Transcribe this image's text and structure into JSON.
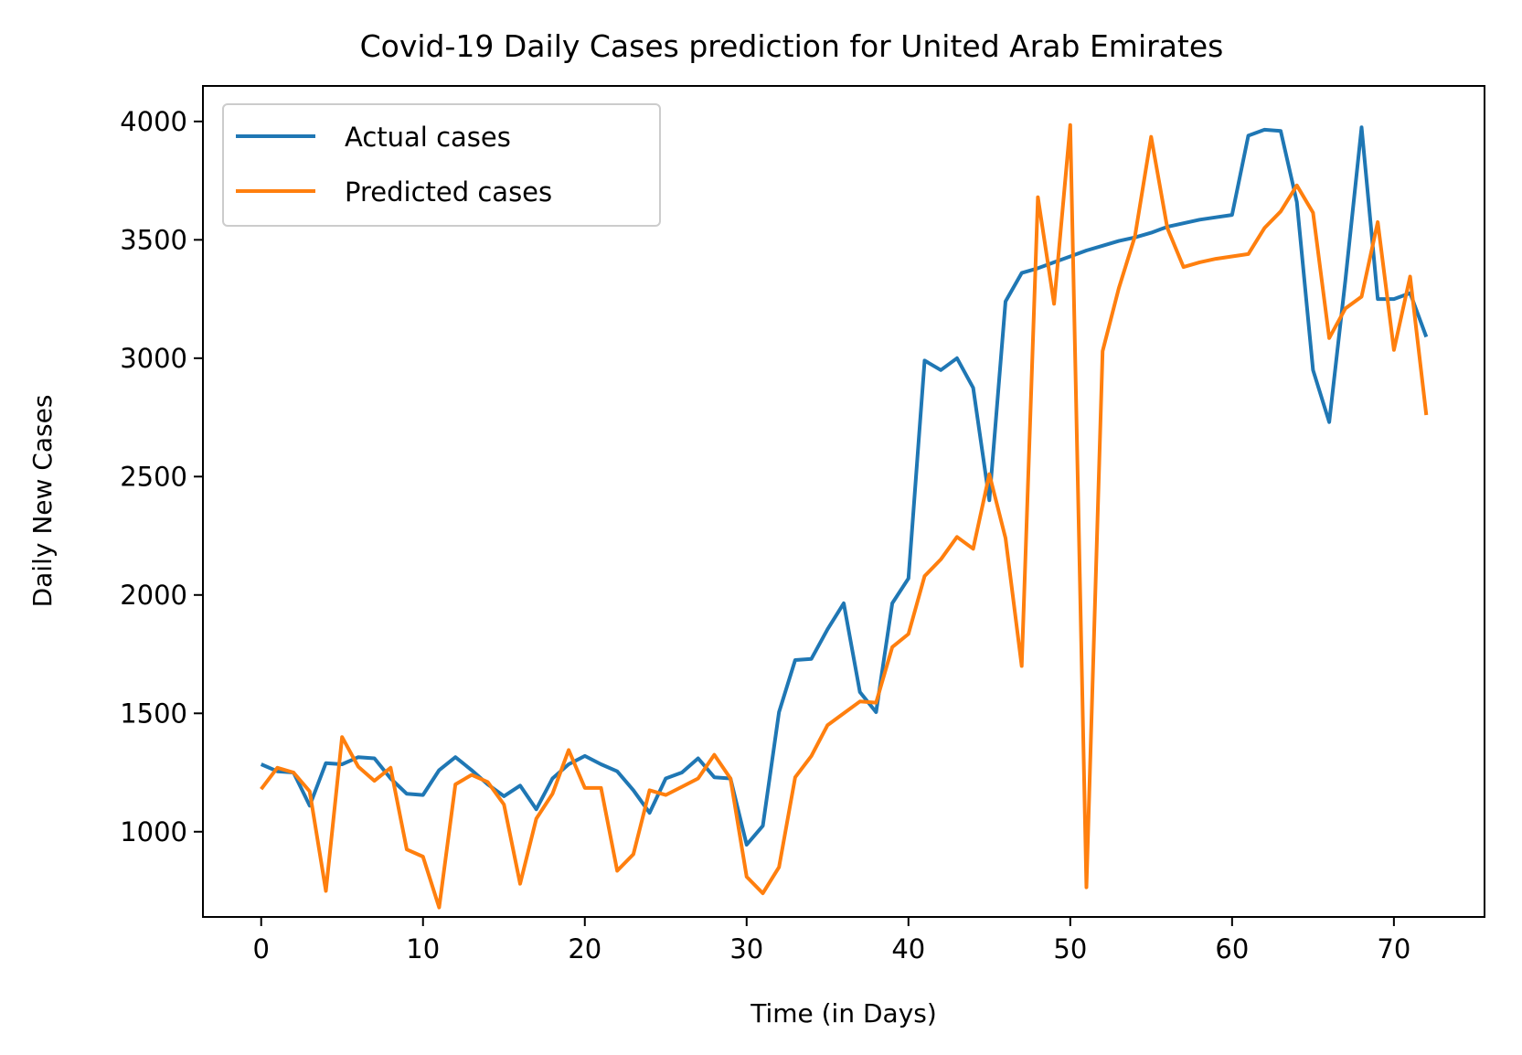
{
  "chart_data": {
    "type": "line",
    "title": "Covid-19 Daily Cases prediction for United Arab Emirates",
    "xlabel": "Time (in Days)",
    "ylabel": "Daily New Cases",
    "xlim": [
      -3.6,
      75.6
    ],
    "ylim": [
      640,
      4150
    ],
    "xticks": [
      0,
      10,
      20,
      30,
      40,
      50,
      60,
      70
    ],
    "yticks": [
      1000,
      1500,
      2000,
      2500,
      3000,
      3500,
      4000
    ],
    "grid": false,
    "legend": {
      "placement": "upper-left"
    },
    "x": [
      0,
      1,
      2,
      3,
      4,
      5,
      6,
      7,
      8,
      9,
      10,
      11,
      12,
      13,
      14,
      15,
      16,
      17,
      18,
      19,
      20,
      21,
      22,
      23,
      24,
      25,
      26,
      27,
      28,
      29,
      30,
      31,
      32,
      33,
      34,
      35,
      36,
      37,
      38,
      39,
      40,
      41,
      42,
      43,
      44,
      45,
      46,
      47,
      48,
      49,
      50,
      51,
      52,
      53,
      54,
      55,
      56,
      57,
      58,
      59,
      60,
      61,
      62,
      63,
      64,
      65,
      66,
      67,
      68,
      69,
      70,
      71,
      72
    ],
    "series": [
      {
        "name": "Actual cases",
        "color": "#1f77b4",
        "values": [
          1285,
          1255,
          1250,
          1110,
          1290,
          1285,
          1315,
          1310,
          1225,
          1160,
          1155,
          1260,
          1315,
          1260,
          1200,
          1150,
          1195,
          1095,
          1225,
          1285,
          1320,
          1285,
          1255,
          1175,
          1080,
          1225,
          1250,
          1310,
          1230,
          1225,
          945,
          1025,
          1505,
          1725,
          1730,
          1855,
          1965,
          1590,
          1505,
          1965,
          2070,
          2990,
          2950,
          3000,
          2875,
          2400,
          3240,
          3360,
          3380,
          3405,
          3430,
          3455,
          3475,
          3495,
          3510,
          3530,
          3555,
          3570,
          3585,
          3595,
          3605,
          3940,
          3965,
          3960,
          3660,
          2950,
          2730,
          3330,
          3975,
          3250,
          3250,
          3275,
          3090
        ]
      },
      {
        "name": "Predicted cases",
        "color": "#ff7f0e",
        "values": [
          1180,
          1270,
          1250,
          1170,
          750,
          1400,
          1275,
          1215,
          1270,
          925,
          895,
          680,
          1200,
          1240,
          1210,
          1115,
          780,
          1055,
          1160,
          1345,
          1185,
          1185,
          835,
          905,
          1175,
          1155,
          1190,
          1225,
          1325,
          1225,
          810,
          740,
          850,
          1230,
          1320,
          1450,
          1500,
          1550,
          1545,
          1780,
          1835,
          2080,
          2150,
          2245,
          2195,
          2510,
          2240,
          1700,
          3680,
          3230,
          3985,
          765,
          3030,
          3295,
          3515,
          3935,
          3550,
          3385,
          3405,
          3420,
          3430,
          3440,
          3550,
          3620,
          3730,
          3615,
          3085,
          3210,
          3260,
          3575,
          3035,
          3345,
          2760
        ]
      }
    ]
  }
}
